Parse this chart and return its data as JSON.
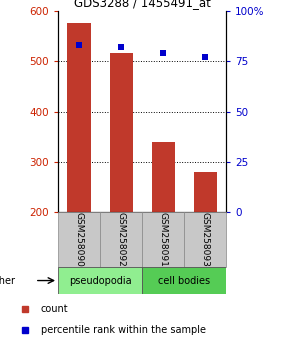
{
  "title": "GDS3288 / 1455491_at",
  "categories": [
    "GSM258090",
    "GSM258092",
    "GSM258091",
    "GSM258093"
  ],
  "bar_values": [
    575,
    515,
    340,
    280
  ],
  "percentile_values": [
    83,
    82,
    79,
    77
  ],
  "bar_bottom": 200,
  "ylim_left": [
    200,
    600
  ],
  "ylim_right": [
    0,
    100
  ],
  "yticks_left": [
    200,
    300,
    400,
    500,
    600
  ],
  "yticks_right": [
    0,
    25,
    50,
    75,
    100
  ],
  "bar_color": "#c0392b",
  "percentile_color": "#0000cc",
  "groups": [
    {
      "label": "pseudopodia",
      "color": "#90ee90"
    },
    {
      "label": "cell bodies",
      "color": "#55cc55"
    }
  ],
  "other_label": "other",
  "legend_count_label": "count",
  "legend_percentile_label": "percentile rank within the sample",
  "title_color": "#000000",
  "left_tick_color": "#cc2200",
  "right_tick_color": "#0000cc",
  "grid_color": "#000000",
  "bar_width": 0.55,
  "figure_width": 2.9,
  "figure_height": 3.54,
  "dpi": 100
}
